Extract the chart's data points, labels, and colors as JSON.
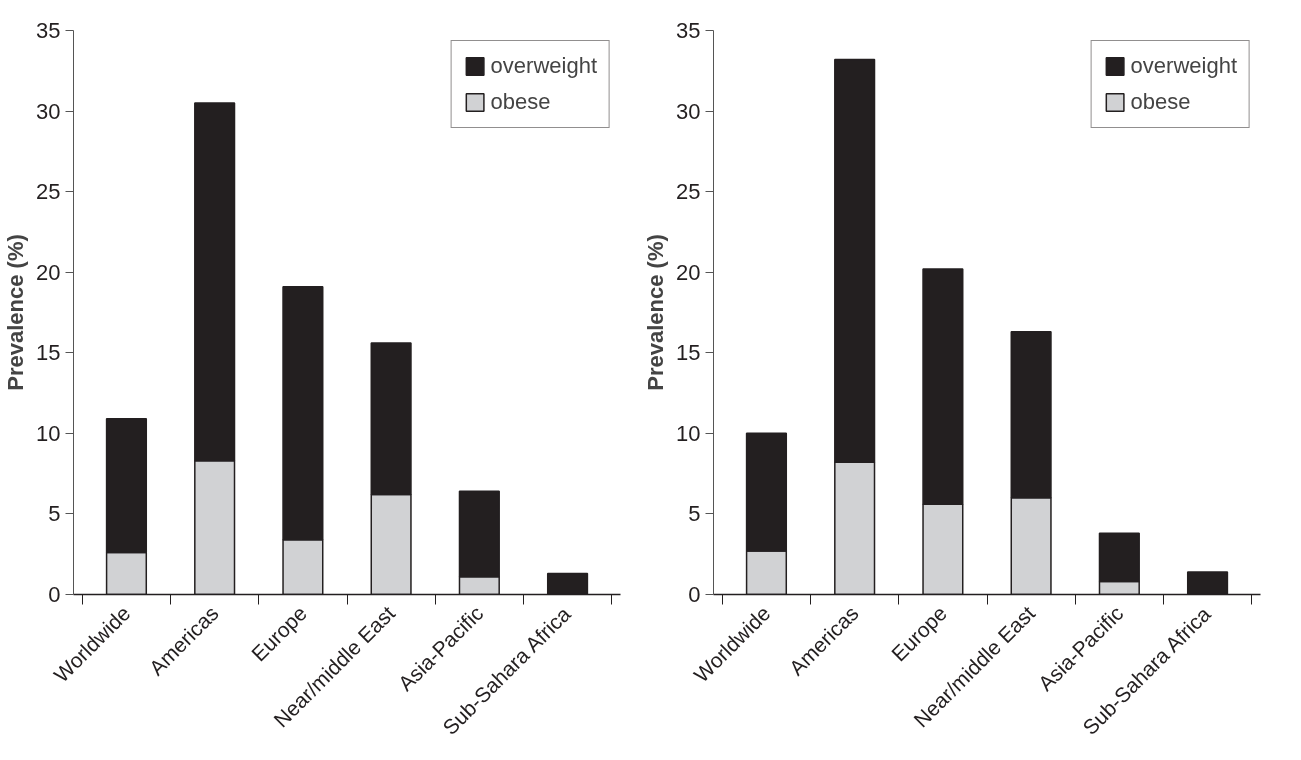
{
  "chart_data": [
    {
      "type": "bar",
      "stacked": true,
      "ylabel": "Prevalence (%)",
      "categories": [
        "Worldwide",
        "Americas",
        "Europe",
        "Near/middle East",
        "Asia-Pacific",
        "Sub-Sahara Africa"
      ],
      "ylim": [
        0,
        35
      ],
      "yticks": [
        0,
        5,
        10,
        15,
        20,
        25,
        30,
        35
      ],
      "legend": "top right",
      "series": [
        {
          "name": "obese",
          "color": "#d1d2d4",
          "values": [
            2.6,
            8.3,
            3.4,
            6.2,
            1.1,
            0
          ]
        },
        {
          "name": "overweight",
          "color": "#231f20",
          "values": [
            8.3,
            22.2,
            15.7,
            9.4,
            5.3,
            1.3
          ]
        }
      ]
    },
    {
      "type": "bar",
      "stacked": true,
      "ylabel": "Prevalence (%)",
      "categories": [
        "Worldwide",
        "Americas",
        "Europe",
        "Near/middle East",
        "Asia-Pacific",
        "Sub-Sahara Africa"
      ],
      "ylim": [
        0,
        35
      ],
      "yticks": [
        0,
        5,
        10,
        15,
        20,
        25,
        30,
        35
      ],
      "legend": "top right",
      "series": [
        {
          "name": "obese",
          "color": "#d1d2d4",
          "values": [
            2.7,
            8.2,
            5.6,
            6.0,
            0.8,
            0
          ]
        },
        {
          "name": "overweight",
          "color": "#231f20",
          "values": [
            7.3,
            25.0,
            14.6,
            10.3,
            3.0,
            1.4
          ]
        }
      ]
    }
  ]
}
